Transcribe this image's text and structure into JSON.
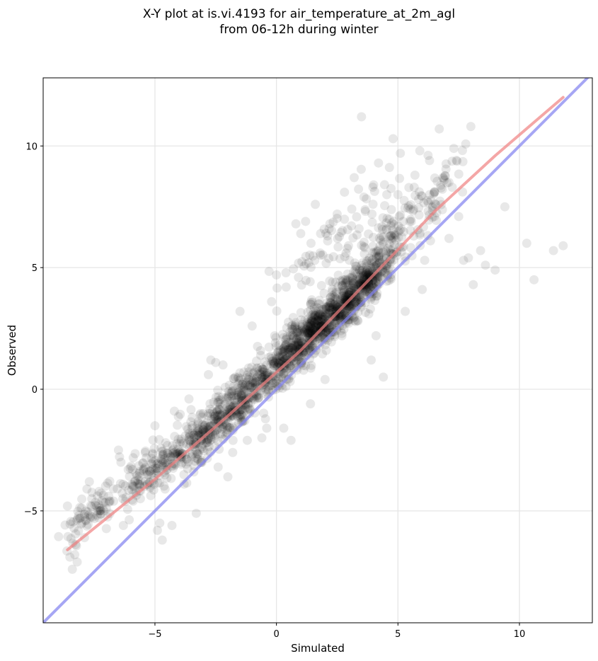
{
  "chart_data": {
    "type": "scatter",
    "title_lines": [
      "X-Y plot at is.vi.4193 for air_temperature_at_2m_agl",
      "from 06-12h during winter"
    ],
    "xlabel": "Simulated",
    "ylabel": "Observed",
    "xlim": [
      -9.6,
      13.0
    ],
    "ylim": [
      -9.6,
      12.8
    ],
    "xticks": [
      -5,
      0,
      5,
      10
    ],
    "yticks": [
      -5,
      0,
      5,
      10
    ],
    "xtick_labels": [
      "−5",
      "0",
      "5",
      "10"
    ],
    "ytick_labels": [
      "−5",
      "0",
      "5",
      "10"
    ],
    "grid": true,
    "legend": "none",
    "colors": {
      "points": "#000000",
      "fit_line": "#f08080",
      "identity_line": "#8080f0",
      "grid": "#e6e6e6"
    },
    "series": [
      {
        "kind": "scatter",
        "approx_points": 1900,
        "points": [
          [
            -8.6,
            -4.8
          ],
          [
            -8.5,
            -6.9
          ],
          [
            -8.4,
            -7.4
          ],
          [
            -8.3,
            -6.8
          ],
          [
            -8.2,
            -7.1
          ],
          [
            -8.1,
            -5.3
          ],
          [
            -8.0,
            -5.5
          ],
          [
            -7.9,
            -6.1
          ],
          [
            -7.8,
            -4.1
          ],
          [
            -7.7,
            -3.8
          ],
          [
            -7.6,
            -4.5
          ],
          [
            -7.4,
            -4.8
          ],
          [
            -7.3,
            -4.2
          ],
          [
            -7.1,
            -5.0
          ],
          [
            -7.0,
            -4.9
          ],
          [
            -6.9,
            -4.4
          ],
          [
            -6.7,
            -4.6
          ],
          [
            -6.5,
            -2.5
          ],
          [
            -6.4,
            -3.0
          ],
          [
            -6.3,
            -5.6
          ],
          [
            -6.1,
            -3.3
          ],
          [
            -5.9,
            -4.6
          ],
          [
            -5.6,
            -4.5
          ],
          [
            -5.4,
            -2.6
          ],
          [
            -5.2,
            -4.0
          ],
          [
            -5.0,
            -1.5
          ],
          [
            -4.9,
            -5.8
          ],
          [
            -4.8,
            -5.5
          ],
          [
            -4.7,
            -6.2
          ],
          [
            -4.5,
            -3.3
          ],
          [
            -4.3,
            -5.6
          ],
          [
            -4.2,
            -0.9
          ],
          [
            -4.0,
            -2.6
          ],
          [
            -3.8,
            -3.9
          ],
          [
            -3.6,
            -0.4
          ],
          [
            -3.4,
            -3.4
          ],
          [
            -3.3,
            -5.1
          ],
          [
            -3.1,
            -3.0
          ],
          [
            -2.8,
            0.6
          ],
          [
            -2.7,
            1.2
          ],
          [
            -2.5,
            1.1
          ],
          [
            -2.4,
            -3.2
          ],
          [
            -2.2,
            1.0
          ],
          [
            -2.0,
            -3.6
          ],
          [
            -1.8,
            -2.6
          ],
          [
            -1.5,
            3.2
          ],
          [
            -1.2,
            -2.1
          ],
          [
            -1.0,
            2.6
          ],
          [
            -0.8,
            0.5
          ],
          [
            -0.6,
            -2.0
          ],
          [
            -0.4,
            -1.6
          ],
          [
            -0.2,
            3.6
          ],
          [
            0.0,
            4.7
          ],
          [
            0.3,
            -1.6
          ],
          [
            0.4,
            4.2
          ],
          [
            0.6,
            -2.1
          ],
          [
            0.8,
            6.8
          ],
          [
            1.0,
            6.4
          ],
          [
            1.2,
            6.9
          ],
          [
            1.4,
            -0.6
          ],
          [
            1.6,
            7.6
          ],
          [
            1.8,
            5.6
          ],
          [
            2.0,
            0.4
          ],
          [
            2.2,
            6.8
          ],
          [
            2.5,
            7.2
          ],
          [
            2.8,
            8.1
          ],
          [
            3.0,
            5.3
          ],
          [
            3.2,
            8.7
          ],
          [
            3.4,
            6.6
          ],
          [
            3.5,
            11.2
          ],
          [
            3.6,
            7.9
          ],
          [
            3.8,
            3.1
          ],
          [
            3.9,
            1.2
          ],
          [
            4.0,
            8.4
          ],
          [
            4.1,
            2.2
          ],
          [
            4.2,
            9.3
          ],
          [
            4.4,
            0.5
          ],
          [
            4.6,
            5.8
          ],
          [
            4.8,
            10.3
          ],
          [
            5.0,
            8.0
          ],
          [
            5.1,
            9.7
          ],
          [
            5.3,
            3.2
          ],
          [
            5.5,
            7.4
          ],
          [
            5.7,
            8.8
          ],
          [
            5.9,
            9.8
          ],
          [
            6.0,
            4.1
          ],
          [
            6.1,
            5.3
          ],
          [
            6.3,
            9.4
          ],
          [
            6.5,
            7.1
          ],
          [
            6.7,
            10.7
          ],
          [
            6.9,
            8.6
          ],
          [
            7.1,
            6.2
          ],
          [
            7.3,
            9.9
          ],
          [
            7.5,
            7.1
          ],
          [
            7.7,
            5.3
          ],
          [
            7.9,
            5.4
          ],
          [
            8.0,
            10.8
          ],
          [
            8.1,
            4.3
          ],
          [
            8.4,
            5.7
          ],
          [
            8.6,
            5.1
          ],
          [
            9.0,
            4.9
          ],
          [
            9.4,
            7.5
          ],
          [
            10.3,
            6.0
          ],
          [
            10.6,
            4.5
          ],
          [
            11.4,
            5.7
          ],
          [
            11.8,
            5.9
          ]
        ],
        "dense_clusters": [
          {
            "x": -7.5,
            "y": -5.0,
            "sx": 0.6,
            "sy": 0.7,
            "n": 70
          },
          {
            "x": -5.0,
            "y": -3.2,
            "sx": 0.8,
            "sy": 0.9,
            "n": 140
          },
          {
            "x": -3.0,
            "y": -1.8,
            "sx": 0.7,
            "sy": 0.9,
            "n": 220
          },
          {
            "x": -1.5,
            "y": -0.5,
            "sx": 0.8,
            "sy": 1.0,
            "n": 220
          },
          {
            "x": 0.3,
            "y": 1.2,
            "sx": 0.8,
            "sy": 1.0,
            "n": 260
          },
          {
            "x": 1.5,
            "y": 2.4,
            "sx": 0.7,
            "sy": 0.9,
            "n": 300
          },
          {
            "x": 2.7,
            "y": 3.4,
            "sx": 0.7,
            "sy": 1.0,
            "n": 260
          },
          {
            "x": 3.7,
            "y": 4.4,
            "sx": 0.6,
            "sy": 0.7,
            "n": 240
          },
          {
            "x": 4.8,
            "y": 6.2,
            "sx": 0.9,
            "sy": 1.6,
            "n": 120
          },
          {
            "x": 2.2,
            "y": 6.0,
            "sx": 1.2,
            "sy": 1.0,
            "n": 60
          },
          {
            "x": 6.2,
            "y": 7.8,
            "sx": 0.9,
            "sy": 1.2,
            "n": 60
          }
        ]
      },
      {
        "kind": "line",
        "role": "fit",
        "points": [
          [
            -8.6,
            -6.6
          ],
          [
            -5.0,
            -3.7
          ],
          [
            -2.0,
            -1.1
          ],
          [
            1.0,
            1.6
          ],
          [
            4.0,
            4.7
          ],
          [
            6.5,
            7.3
          ],
          [
            9.0,
            9.6
          ],
          [
            11.8,
            12.0
          ]
        ]
      },
      {
        "kind": "line",
        "role": "identity",
        "points": [
          [
            -9.6,
            -9.6
          ],
          [
            13.0,
            13.0
          ]
        ]
      }
    ]
  }
}
